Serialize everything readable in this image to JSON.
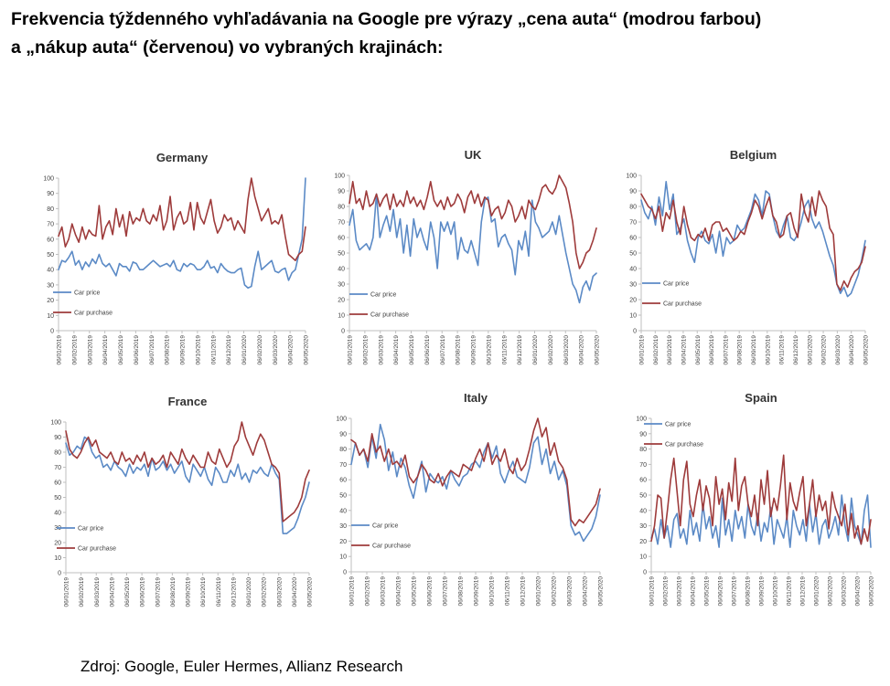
{
  "title": {
    "line1": "Frekvencia týždenného vyhľadávania na Google pre výrazy „cena auta“ (modrou farbou)",
    "line2": "a „nákup auta“ (červenou) vo vybraných krajinách:"
  },
  "source": "Zdroj: Google, Euler Hermes, Allianz Research",
  "colors": {
    "car_price": "#5b8ac6",
    "car_purchase": "#9e3b3b",
    "axis": "#bfbfbf",
    "text": "#404040"
  },
  "chart_data": [
    {
      "type": "line",
      "title": "Germany",
      "ylim": [
        0,
        100
      ],
      "yticks": [
        0,
        10,
        20,
        30,
        40,
        50,
        60,
        70,
        80,
        90,
        100
      ],
      "xticks": [
        "06/01/2019",
        "06/02/2019",
        "06/03/2019",
        "06/04/2019",
        "06/05/2019",
        "06/06/2019",
        "06/07/2019",
        "06/08/2019",
        "06/09/2019",
        "06/10/2019",
        "06/11/2019",
        "06/12/2019",
        "06/01/2020",
        "06/02/2020",
        "06/03/2020",
        "06/04/2020",
        "06/05/2020"
      ],
      "legend_position": "lower-left",
      "series": [
        {
          "name": "Car price",
          "values": [
            40,
            46,
            45,
            48,
            52,
            43,
            46,
            40,
            45,
            42,
            47,
            44,
            50,
            44,
            42,
            44,
            40,
            36,
            44,
            42,
            42,
            39,
            45,
            44,
            40,
            40,
            42,
            44,
            46,
            44,
            42,
            43,
            44,
            42,
            46,
            40,
            39,
            44,
            42,
            44,
            43,
            40,
            40,
            42,
            46,
            41,
            42,
            38,
            44,
            41,
            39,
            38,
            38,
            40,
            41,
            30,
            28,
            29,
            42,
            52,
            40,
            42,
            44,
            46,
            39,
            38,
            40,
            41,
            33,
            38,
            40,
            50,
            60,
            100
          ]
        },
        {
          "name": "Car purchase",
          "values": [
            62,
            68,
            55,
            60,
            70,
            63,
            58,
            68,
            60,
            66,
            63,
            62,
            82,
            60,
            68,
            72,
            63,
            80,
            68,
            76,
            62,
            78,
            70,
            74,
            72,
            80,
            72,
            70,
            76,
            72,
            82,
            66,
            72,
            88,
            66,
            74,
            78,
            70,
            72,
            84,
            66,
            84,
            74,
            70,
            78,
            86,
            72,
            64,
            68,
            76,
            72,
            74,
            66,
            72,
            68,
            64,
            86,
            100,
            88,
            80,
            72,
            76,
            80,
            70,
            72,
            70,
            76,
            62,
            50,
            48,
            46,
            50,
            52,
            68
          ]
        }
      ]
    },
    {
      "type": "line",
      "title": "UK",
      "ylim": [
        0,
        100
      ],
      "yticks": [
        0,
        10,
        20,
        30,
        40,
        50,
        60,
        70,
        80,
        90,
        100
      ],
      "xticks": [
        "06/01/2019",
        "06/02/2019",
        "06/03/2019",
        "06/04/2019",
        "06/05/2019",
        "06/06/2019",
        "06/07/2019",
        "06/08/2019",
        "06/09/2019",
        "06/10/2019",
        "06/11/2019",
        "06/12/2019",
        "06/01/2020",
        "06/02/2020",
        "06/03/2020",
        "06/04/2020",
        "06/05/2020"
      ],
      "legend_position": "lower-left",
      "series": [
        {
          "name": "Car price",
          "values": [
            68,
            78,
            58,
            52,
            54,
            56,
            52,
            60,
            88,
            60,
            68,
            74,
            64,
            78,
            60,
            72,
            50,
            68,
            48,
            72,
            60,
            66,
            58,
            52,
            70,
            60,
            40,
            70,
            64,
            70,
            62,
            70,
            46,
            60,
            52,
            50,
            58,
            50,
            42,
            70,
            84,
            86,
            70,
            72,
            54,
            60,
            62,
            56,
            52,
            36,
            58,
            52,
            64,
            48,
            84,
            70,
            66,
            60,
            62,
            64,
            70,
            62,
            74,
            62,
            50,
            40,
            30,
            26,
            18,
            28,
            32,
            26,
            35,
            37
          ]
        },
        {
          "name": "Car purchase",
          "values": [
            82,
            96,
            82,
            85,
            78,
            90,
            80,
            82,
            88,
            80,
            85,
            88,
            78,
            88,
            80,
            84,
            80,
            90,
            82,
            86,
            80,
            84,
            78,
            86,
            96,
            84,
            80,
            84,
            78,
            86,
            80,
            82,
            88,
            84,
            76,
            86,
            90,
            82,
            88,
            80,
            86,
            84,
            74,
            78,
            80,
            72,
            76,
            84,
            80,
            70,
            74,
            80,
            72,
            84,
            80,
            78,
            84,
            92,
            94,
            90,
            88,
            92,
            100,
            96,
            92,
            82,
            70,
            50,
            40,
            44,
            50,
            52,
            58,
            66
          ]
        }
      ]
    },
    {
      "type": "line",
      "title": "Belgium",
      "ylim": [
        0,
        100
      ],
      "yticks": [
        0,
        10,
        20,
        30,
        40,
        50,
        60,
        70,
        80,
        90,
        100
      ],
      "xticks": [
        "06/01/2019",
        "06/02/2019",
        "06/03/2019",
        "06/04/2019",
        "06/05/2019",
        "06/06/2019",
        "06/07/2019",
        "06/08/2019",
        "06/09/2019",
        "06/10/2019",
        "06/11/2019",
        "06/12/2019",
        "06/01/2020",
        "06/02/2020",
        "06/03/2020",
        "06/04/2020",
        "06/05/2020"
      ],
      "legend_position": "lower-left",
      "series": [
        {
          "name": "Car price",
          "values": [
            84,
            76,
            72,
            80,
            68,
            86,
            74,
            96,
            78,
            88,
            62,
            66,
            72,
            58,
            50,
            44,
            60,
            64,
            58,
            56,
            62,
            50,
            64,
            48,
            60,
            56,
            58,
            68,
            64,
            66,
            72,
            78,
            88,
            84,
            74,
            90,
            88,
            74,
            64,
            60,
            68,
            74,
            60,
            58,
            62,
            70,
            80,
            84,
            72,
            66,
            70,
            64,
            56,
            48,
            42,
            30,
            24,
            28,
            22,
            24,
            30,
            36,
            46,
            58
          ]
        },
        {
          "name": "Car purchase",
          "values": [
            88,
            84,
            80,
            78,
            72,
            80,
            64,
            76,
            72,
            84,
            70,
            62,
            80,
            68,
            60,
            58,
            62,
            60,
            66,
            58,
            68,
            70,
            70,
            64,
            66,
            62,
            58,
            60,
            64,
            62,
            70,
            76,
            84,
            80,
            72,
            80,
            86,
            74,
            70,
            60,
            62,
            74,
            76,
            66,
            60,
            88,
            76,
            70,
            86,
            74,
            90,
            84,
            80,
            66,
            62,
            30,
            26,
            32,
            28,
            34,
            38,
            40,
            44,
            54
          ]
        }
      ]
    },
    {
      "type": "line",
      "title": "France",
      "ylim": [
        0,
        100
      ],
      "yticks": [
        0,
        10,
        20,
        30,
        40,
        50,
        60,
        70,
        80,
        90,
        100
      ],
      "xticks": [
        "06/01/2019",
        "06/02/2019",
        "06/03/2019",
        "06/04/2019",
        "06/05/2019",
        "06/06/2019",
        "06/07/2019",
        "06/08/2019",
        "06/09/2019",
        "06/10/2019",
        "06/11/2019",
        "06/12/2019",
        "06/01/2020",
        "06/02/2020",
        "06/03/2020",
        "06/04/2020",
        "06/05/2020"
      ],
      "legend_position": "lower-left",
      "series": [
        {
          "name": "Car price",
          "values": [
            86,
            78,
            80,
            84,
            82,
            90,
            88,
            80,
            76,
            78,
            70,
            72,
            68,
            74,
            70,
            68,
            64,
            72,
            66,
            70,
            68,
            72,
            64,
            76,
            68,
            70,
            74,
            68,
            72,
            66,
            70,
            74,
            64,
            60,
            72,
            68,
            64,
            70,
            62,
            58,
            70,
            66,
            60,
            60,
            68,
            64,
            72,
            62,
            66,
            60,
            68,
            66,
            70,
            66,
            64,
            72,
            66,
            62,
            26,
            26,
            28,
            30,
            36,
            44,
            50,
            60
          ]
        },
        {
          "name": "Car purchase",
          "values": [
            94,
            82,
            78,
            76,
            80,
            86,
            90,
            84,
            88,
            80,
            78,
            76,
            80,
            74,
            72,
            80,
            74,
            76,
            72,
            78,
            74,
            80,
            70,
            76,
            72,
            74,
            78,
            70,
            80,
            76,
            72,
            82,
            76,
            72,
            78,
            74,
            70,
            70,
            80,
            74,
            72,
            82,
            76,
            70,
            74,
            84,
            88,
            100,
            90,
            84,
            78,
            86,
            92,
            88,
            80,
            72,
            70,
            66,
            34,
            36,
            38,
            40,
            44,
            50,
            62,
            68
          ]
        }
      ]
    },
    {
      "type": "line",
      "title": "Italy",
      "ylim": [
        0,
        100
      ],
      "yticks": [
        0,
        10,
        20,
        30,
        40,
        50,
        60,
        70,
        80,
        90,
        100
      ],
      "xticks": [
        "06/01/2019",
        "06/02/2019",
        "06/03/2019",
        "06/04/2019",
        "06/05/2019",
        "06/06/2019",
        "06/07/2019",
        "06/08/2019",
        "06/09/2019",
        "06/10/2019",
        "06/11/2019",
        "06/12/2019",
        "06/01/2020",
        "06/02/2020",
        "06/03/2020",
        "06/04/2020",
        "06/05/2020"
      ],
      "legend_position": "lower-left",
      "series": [
        {
          "name": "Car price",
          "values": [
            70,
            84,
            76,
            80,
            68,
            88,
            74,
            96,
            86,
            66,
            78,
            62,
            74,
            68,
            56,
            48,
            62,
            72,
            52,
            64,
            60,
            58,
            62,
            54,
            66,
            60,
            56,
            62,
            64,
            70,
            72,
            68,
            78,
            84,
            74,
            82,
            64,
            58,
            66,
            72,
            62,
            60,
            58,
            68,
            84,
            88,
            70,
            80,
            64,
            72,
            60,
            66,
            56,
            30,
            24,
            26,
            20,
            24,
            28,
            36,
            50
          ]
        },
        {
          "name": "Car purchase",
          "values": [
            86,
            84,
            76,
            80,
            72,
            90,
            78,
            82,
            72,
            80,
            70,
            72,
            68,
            76,
            62,
            58,
            62,
            70,
            66,
            60,
            58,
            64,
            56,
            62,
            66,
            64,
            62,
            70,
            68,
            66,
            74,
            80,
            72,
            84,
            70,
            76,
            72,
            80,
            68,
            64,
            74,
            66,
            70,
            80,
            92,
            100,
            88,
            94,
            76,
            84,
            72,
            68,
            60,
            34,
            30,
            34,
            32,
            36,
            40,
            44,
            54
          ]
        }
      ]
    },
    {
      "type": "line",
      "title": "Spain",
      "ylim": [
        0,
        100
      ],
      "yticks": [
        0,
        10,
        20,
        30,
        40,
        50,
        60,
        70,
        80,
        90,
        100
      ],
      "xticks": [
        "06/01/2019",
        "06/02/2019",
        "06/03/2019",
        "06/04/2019",
        "06/05/2019",
        "06/06/2019",
        "06/07/2019",
        "06/08/2019",
        "06/09/2019",
        "06/10/2019",
        "06/11/2019",
        "06/12/2019",
        "06/01/2020",
        "06/02/2020",
        "06/03/2020",
        "06/04/2020",
        "06/05/2020"
      ],
      "legend_position": "upper-left",
      "series": [
        {
          "name": "Car price",
          "values": [
            22,
            28,
            18,
            34,
            22,
            30,
            16,
            34,
            38,
            22,
            28,
            18,
            40,
            24,
            32,
            20,
            44,
            28,
            36,
            22,
            30,
            16,
            48,
            24,
            34,
            20,
            40,
            28,
            36,
            22,
            44,
            30,
            24,
            38,
            20,
            32,
            26,
            42,
            18,
            34,
            28,
            22,
            36,
            16,
            40,
            30,
            24,
            34,
            20,
            44,
            26,
            38,
            18,
            30,
            34,
            22,
            28,
            36,
            24,
            50,
            30,
            20,
            48,
            30,
            24,
            18,
            40,
            50,
            16
          ]
        },
        {
          "name": "Car purchase",
          "values": [
            20,
            30,
            50,
            48,
            22,
            40,
            60,
            74,
            52,
            30,
            60,
            72,
            44,
            36,
            50,
            60,
            40,
            56,
            48,
            30,
            62,
            44,
            54,
            34,
            58,
            46,
            74,
            40,
            56,
            62,
            44,
            36,
            50,
            30,
            60,
            44,
            66,
            36,
            48,
            40,
            56,
            76,
            34,
            58,
            46,
            40,
            52,
            62,
            30,
            44,
            60,
            36,
            50,
            40,
            46,
            28,
            52,
            42,
            36,
            30,
            44,
            24,
            38,
            22,
            30,
            18,
            28,
            20,
            34
          ]
        }
      ]
    }
  ]
}
